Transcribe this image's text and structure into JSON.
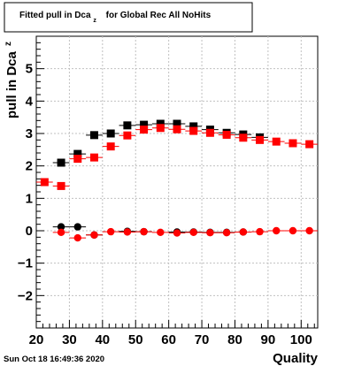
{
  "chart_data": {
    "type": "scatter",
    "title_main": "Fitted pull in Dca",
    "title_sub": "z",
    "title_rest": "for Global Rec All NoHits",
    "xlabel": "Quality",
    "ylabel_main": "pull in Dca",
    "ylabel_sub": "z",
    "xlim": [
      20,
      105
    ],
    "ylim": [
      -3,
      6
    ],
    "xticks": [
      20,
      30,
      40,
      50,
      60,
      70,
      80,
      90,
      100
    ],
    "yticks": [
      -2,
      -1,
      0,
      1,
      2,
      3,
      4,
      5
    ],
    "grid": true,
    "series": [
      {
        "marker": "square",
        "color": "#000000",
        "x": [
          27.5,
          32.5,
          37.5,
          42.5,
          47.5,
          52.5,
          57.5,
          62.5,
          67.5,
          72.5,
          77.5,
          82.5,
          87.5
        ],
        "y": [
          2.1,
          2.37,
          2.95,
          3.0,
          3.25,
          3.27,
          3.3,
          3.3,
          3.22,
          3.12,
          3.02,
          2.97,
          2.88
        ]
      },
      {
        "marker": "square",
        "color": "#ff0000",
        "x": [
          22.5,
          27.5,
          32.5,
          37.5,
          42.5,
          47.5,
          52.5,
          57.5,
          62.5,
          67.5,
          72.5,
          77.5,
          82.5,
          87.5,
          92.5,
          97.5,
          102.5
        ],
        "y": [
          1.5,
          1.38,
          2.22,
          2.26,
          2.6,
          2.94,
          3.12,
          3.17,
          3.13,
          3.08,
          3.02,
          2.96,
          2.87,
          2.8,
          2.75,
          2.7,
          2.67
        ]
      },
      {
        "marker": "circle",
        "color": "#000000",
        "x": [
          27.5,
          32.5,
          37.5,
          47.5,
          52.5,
          62.5,
          67.5,
          72.5,
          77.5,
          82.5
        ],
        "y": [
          0.12,
          0.12,
          -0.13,
          -0.02,
          -0.03,
          -0.04,
          -0.04,
          -0.05,
          -0.05,
          -0.04
        ]
      },
      {
        "marker": "circle",
        "color": "#ff0000",
        "x": [
          27.5,
          32.5,
          37.5,
          42.5,
          47.5,
          52.5,
          57.5,
          62.5,
          67.5,
          72.5,
          77.5,
          82.5,
          87.5,
          92.5,
          97.5,
          102.5
        ],
        "y": [
          -0.05,
          -0.22,
          -0.13,
          -0.03,
          -0.04,
          -0.03,
          -0.05,
          -0.07,
          -0.05,
          -0.06,
          -0.06,
          -0.04,
          -0.03,
          0.0,
          0.0,
          0.0
        ]
      }
    ]
  },
  "timestamp": "Sun Oct 18 16:49:36 2020",
  "colors": {
    "black": "#000000",
    "red": "#ff0000",
    "grid": "#c0c0c0"
  }
}
